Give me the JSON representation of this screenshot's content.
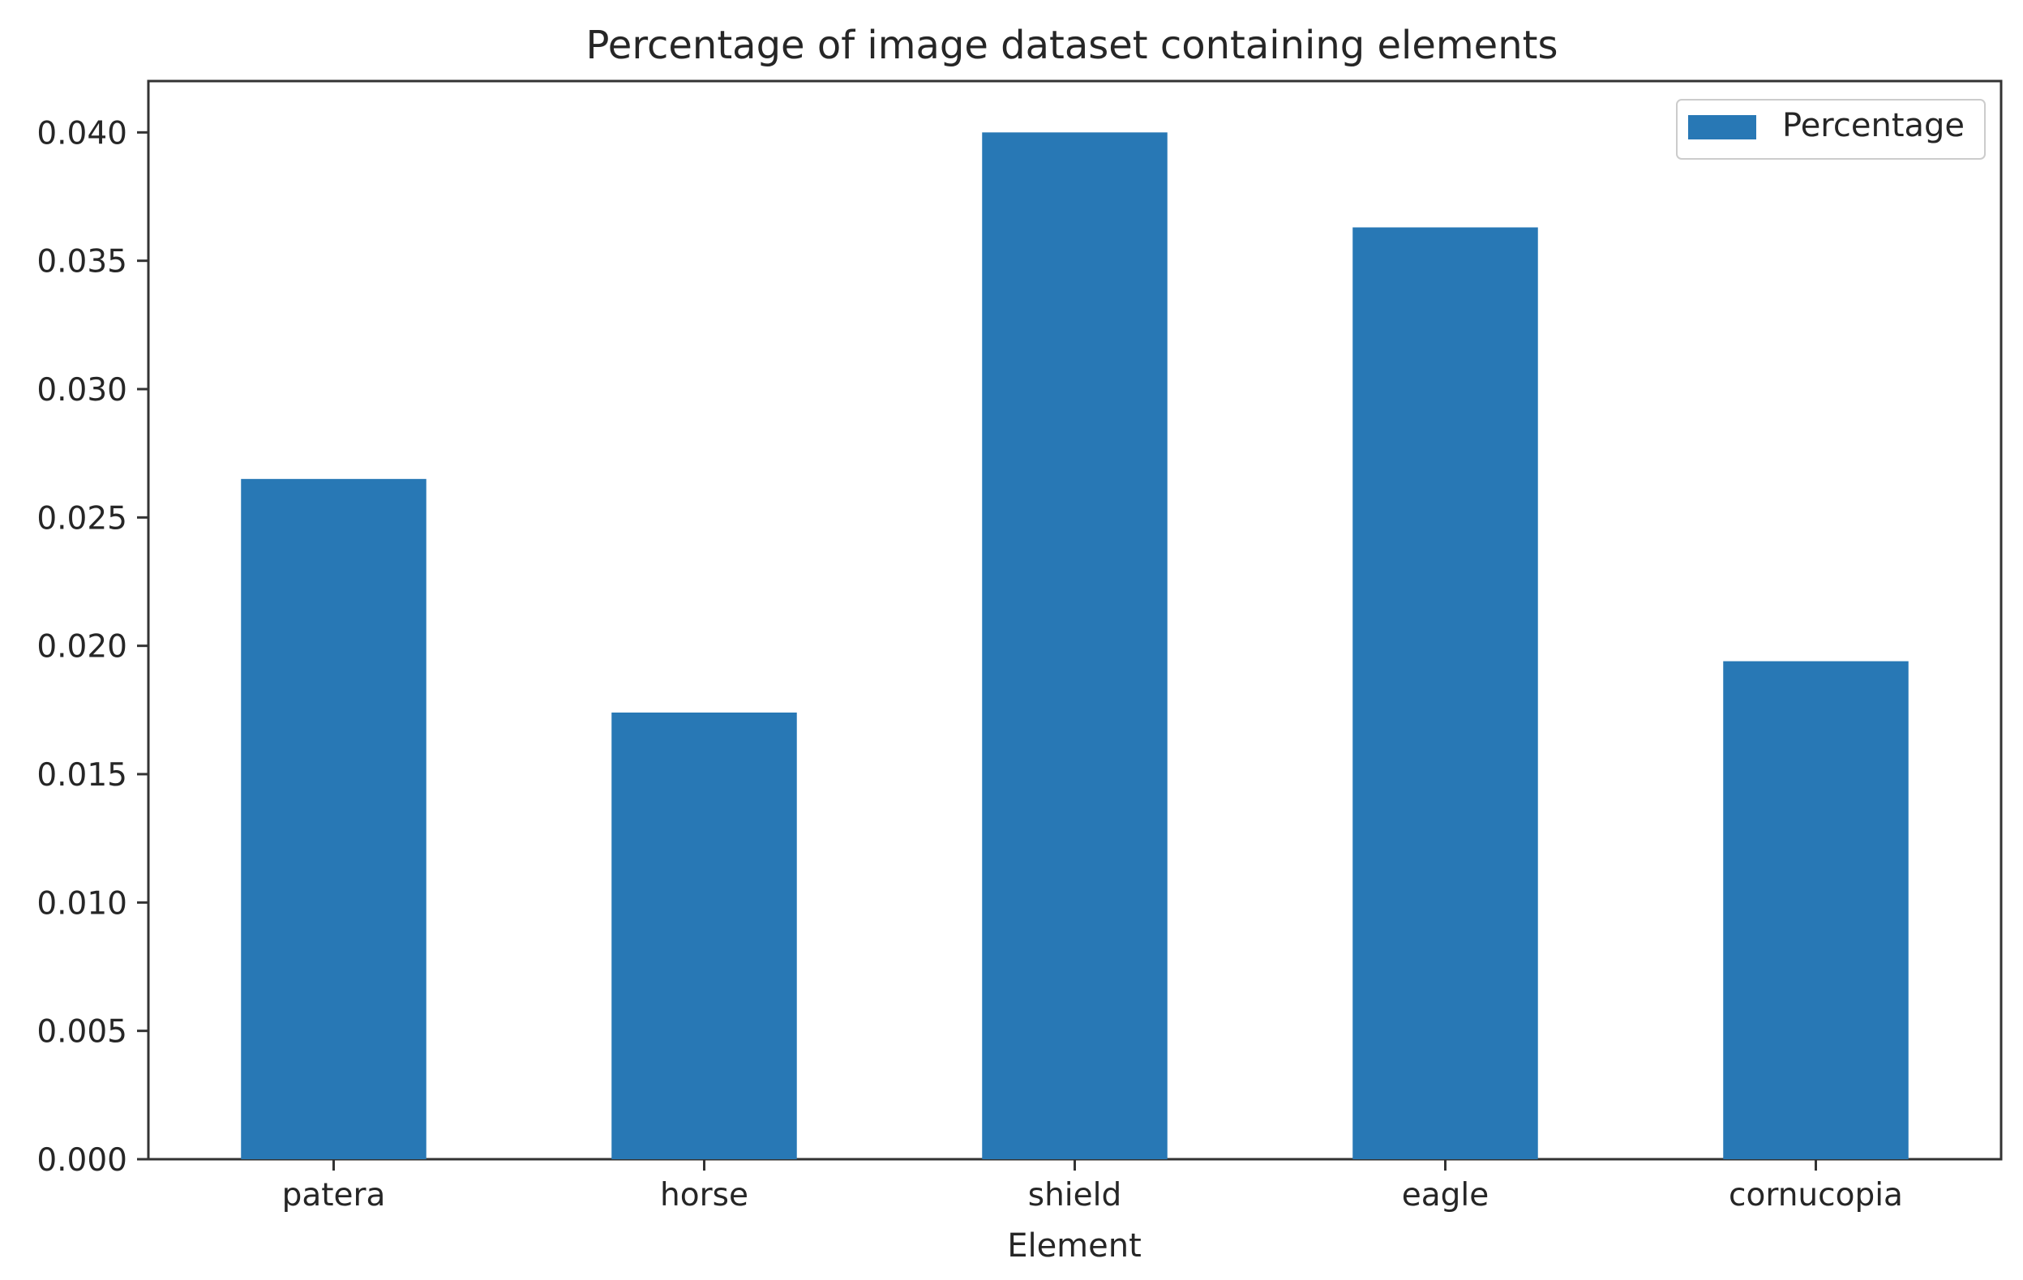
{
  "chart_data": {
    "type": "bar",
    "title": "Percentage of image dataset containing elements",
    "xlabel": "Element",
    "ylabel": "",
    "categories": [
      "patera",
      "horse",
      "shield",
      "eagle",
      "cornucopia"
    ],
    "series": [
      {
        "name": "Percentage",
        "values": [
          0.0265,
          0.0174,
          0.04,
          0.0363,
          0.0194
        ],
        "color": "#2878b5"
      }
    ],
    "ylim": [
      0,
      0.042
    ],
    "yticks": [
      "0.000",
      "0.005",
      "0.010",
      "0.015",
      "0.020",
      "0.025",
      "0.030",
      "0.035",
      "0.040"
    ],
    "grid": false,
    "legend": "top-right"
  }
}
